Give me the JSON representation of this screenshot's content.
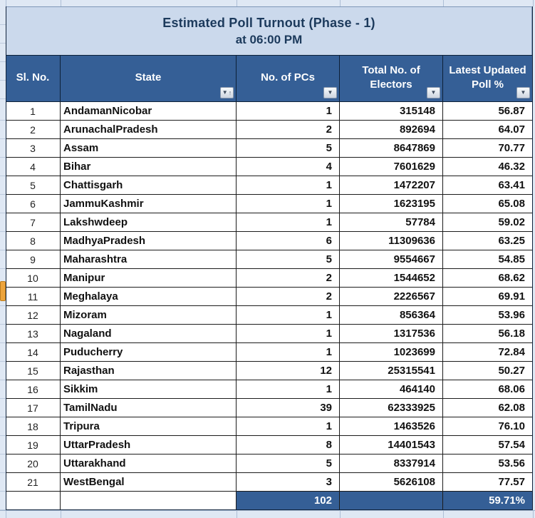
{
  "title": {
    "line1": "Estimated Poll Turnout (Phase - 1)",
    "line2": "at 06:00 PM"
  },
  "columns": [
    {
      "label": "Sl. No.",
      "filter": false
    },
    {
      "label": "State",
      "filter": true,
      "sorted_ascending": true
    },
    {
      "label": "No. of PCs",
      "filter": true
    },
    {
      "label": "Total No. of Electors",
      "filter": true
    },
    {
      "label": "Latest Updated Poll %",
      "filter": true
    }
  ],
  "filter_icon": "▼",
  "sort_ascending_icon": "↑",
  "rows": [
    {
      "sl": "1",
      "state": "AndamanNicobar",
      "pcs": "1",
      "electors": "315148",
      "poll": "56.87"
    },
    {
      "sl": "2",
      "state": "ArunachalPradesh",
      "pcs": "2",
      "electors": "892694",
      "poll": "64.07"
    },
    {
      "sl": "3",
      "state": "Assam",
      "pcs": "5",
      "electors": "8647869",
      "poll": "70.77"
    },
    {
      "sl": "4",
      "state": "Bihar",
      "pcs": "4",
      "electors": "7601629",
      "poll": "46.32"
    },
    {
      "sl": "5",
      "state": "Chattisgarh",
      "pcs": "1",
      "electors": "1472207",
      "poll": "63.41"
    },
    {
      "sl": "6",
      "state": "JammuKashmir",
      "pcs": "1",
      "electors": "1623195",
      "poll": "65.08"
    },
    {
      "sl": "7",
      "state": "Lakshwdeep",
      "pcs": "1",
      "electors": "57784",
      "poll": "59.02"
    },
    {
      "sl": "8",
      "state": "MadhyaPradesh",
      "pcs": "6",
      "electors": "11309636",
      "poll": "63.25"
    },
    {
      "sl": "9",
      "state": "Maharashtra",
      "pcs": "5",
      "electors": "9554667",
      "poll": "54.85"
    },
    {
      "sl": "10",
      "state": "Manipur",
      "pcs": "2",
      "electors": "1544652",
      "poll": "68.62"
    },
    {
      "sl": "11",
      "state": "Meghalaya",
      "pcs": "2",
      "electors": "2226567",
      "poll": "69.91"
    },
    {
      "sl": "12",
      "state": "Mizoram",
      "pcs": "1",
      "electors": "856364",
      "poll": "53.96"
    },
    {
      "sl": "13",
      "state": "Nagaland",
      "pcs": "1",
      "electors": "1317536",
      "poll": "56.18"
    },
    {
      "sl": "14",
      "state": "Puducherry",
      "pcs": "1",
      "electors": "1023699",
      "poll": "72.84"
    },
    {
      "sl": "15",
      "state": "Rajasthan",
      "pcs": "12",
      "electors": "25315541",
      "poll": "50.27"
    },
    {
      "sl": "16",
      "state": "Sikkim",
      "pcs": "1",
      "electors": "464140",
      "poll": "68.06"
    },
    {
      "sl": "17",
      "state": "TamilNadu",
      "pcs": "39",
      "electors": "62333925",
      "poll": "62.08"
    },
    {
      "sl": "18",
      "state": "Tripura",
      "pcs": "1",
      "electors": "1463526",
      "poll": "76.10"
    },
    {
      "sl": "19",
      "state": "UttarPradesh",
      "pcs": "8",
      "electors": "14401543",
      "poll": "57.54"
    },
    {
      "sl": "20",
      "state": "Uttarakhand",
      "pcs": "5",
      "electors": "8337914",
      "poll": "53.56"
    },
    {
      "sl": "21",
      "state": "WestBengal",
      "pcs": "3",
      "electors": "5626108",
      "poll": "77.57"
    }
  ],
  "total": {
    "sl": "",
    "state": "",
    "pcs": "102",
    "electors": "",
    "poll": "59.71%"
  },
  "colors": {
    "header_bg": "#355f96",
    "total_bg": "#355f96",
    "title_bg": "#cbd9ec",
    "title_text": "#1c3a5c",
    "row_bg": "#ffffff",
    "sheet_bg": "#dfe8f4",
    "marker": "#eda43c",
    "marker_border": "#bd7d1d"
  },
  "chart_data": {
    "type": "table",
    "title": "Estimated Poll Turnout (Phase - 1) at 06:00 PM",
    "columns": [
      "Sl. No.",
      "State",
      "No. of PCs",
      "Total No. of Electors",
      "Latest Updated Poll %"
    ],
    "rows": [
      [
        1,
        "AndamanNicobar",
        1,
        315148,
        56.87
      ],
      [
        2,
        "ArunachalPradesh",
        2,
        892694,
        64.07
      ],
      [
        3,
        "Assam",
        5,
        8647869,
        70.77
      ],
      [
        4,
        "Bihar",
        4,
        7601629,
        46.32
      ],
      [
        5,
        "Chattisgarh",
        1,
        1472207,
        63.41
      ],
      [
        6,
        "JammuKashmir",
        1,
        1623195,
        65.08
      ],
      [
        7,
        "Lakshwdeep",
        1,
        57784,
        59.02
      ],
      [
        8,
        "MadhyaPradesh",
        6,
        11309636,
        63.25
      ],
      [
        9,
        "Maharashtra",
        5,
        9554667,
        54.85
      ],
      [
        10,
        "Manipur",
        2,
        1544652,
        68.62
      ],
      [
        11,
        "Meghalaya",
        2,
        2226567,
        69.91
      ],
      [
        12,
        "Mizoram",
        1,
        856364,
        53.96
      ],
      [
        13,
        "Nagaland",
        1,
        1317536,
        56.18
      ],
      [
        14,
        "Puducherry",
        1,
        1023699,
        72.84
      ],
      [
        15,
        "Rajasthan",
        12,
        25315541,
        50.27
      ],
      [
        16,
        "Sikkim",
        1,
        464140,
        68.06
      ],
      [
        17,
        "TamilNadu",
        39,
        62333925,
        62.08
      ],
      [
        18,
        "Tripura",
        1,
        1463526,
        76.1
      ],
      [
        19,
        "UttarPradesh",
        8,
        14401543,
        57.54
      ],
      [
        20,
        "Uttarakhand",
        5,
        8337914,
        53.56
      ],
      [
        21,
        "WestBengal",
        3,
        5626108,
        77.57
      ]
    ],
    "totals": {
      "No. of PCs": 102,
      "Latest Updated Poll %": "59.71%"
    }
  }
}
